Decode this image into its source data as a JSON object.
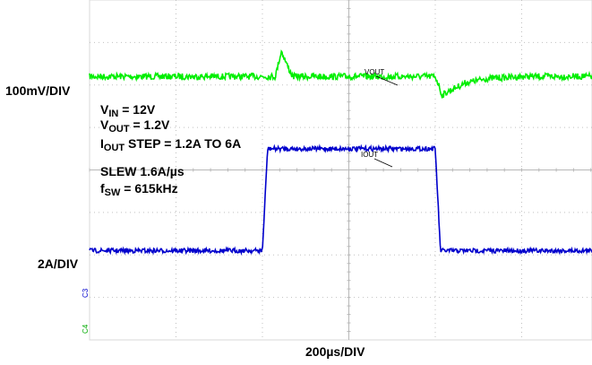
{
  "chart_data": {
    "type": "line",
    "x_unit_label": "200µs/DIV",
    "grid": true,
    "x_divisions": 10,
    "y_divisions": 8,
    "series": [
      {
        "name": "VOUT",
        "color": "#00ee00",
        "scale_label": "100mV/DIV",
        "units_per_div": "0.1 V",
        "baseline_div": 2.2,
        "points_us": [
          0,
          430,
          438,
          444,
          460,
          470,
          800,
          810,
          815,
          830,
          870,
          920,
          1000,
          1310
        ],
        "points_div": [
          2.2,
          2.2,
          2.55,
          2.8,
          2.4,
          2.2,
          2.2,
          1.95,
          1.75,
          1.85,
          2.05,
          2.15,
          2.2,
          2.2
        ]
      },
      {
        "name": "IOUT",
        "color": "#0000cc",
        "scale_label": "2A/DIV",
        "units_per_div": "2 A",
        "points_us": [
          0,
          400,
          412,
          800,
          812,
          1310
        ],
        "points_A": [
          1.2,
          1.2,
          6.0,
          6.0,
          1.2,
          1.2
        ]
      }
    ],
    "annotations": {
      "vin": "= 12V",
      "vout": "= 1.2V",
      "iout_step": "STEP = 1.2A TO 6A",
      "slew": "SLEW 1.6A/µs",
      "fsw": "= 615kHz"
    },
    "channel_markers": [
      "C3",
      "C4"
    ]
  }
}
